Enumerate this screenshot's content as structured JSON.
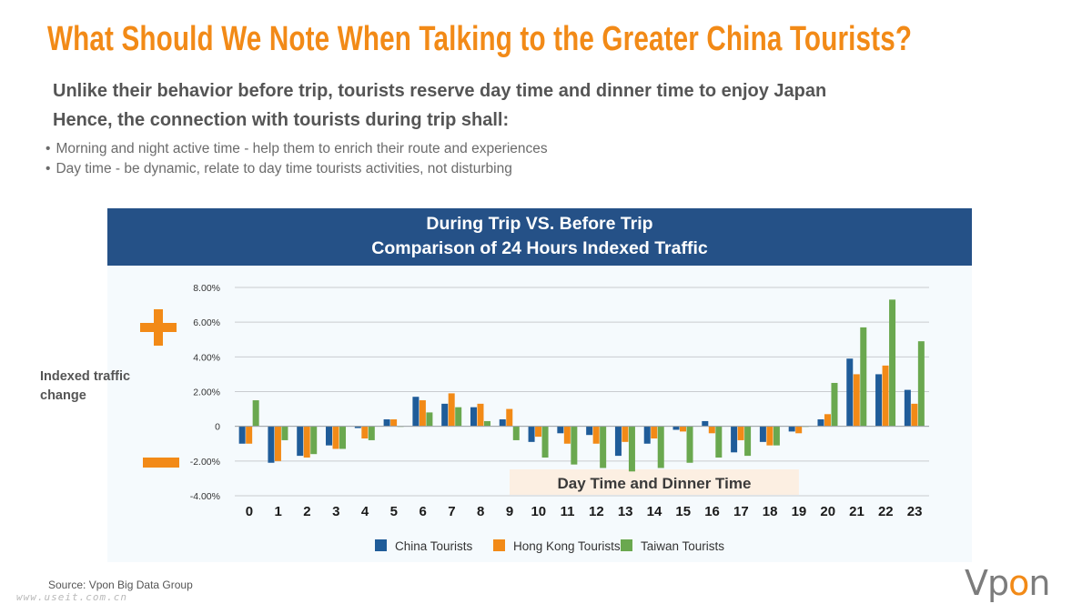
{
  "header": {
    "title": "What Should We Note When Talking to the Greater China Tourists?",
    "subtitle1": "Unlike their behavior before trip, tourists reserve day time and dinner time to enjoy Japan",
    "subtitle2": "Hence, the connection with tourists during trip shall:",
    "bullets": [
      "Morning and night active time - help them to enrich their route and experiences",
      "Day time - be dynamic, relate to day time tourists activities, not disturbing"
    ]
  },
  "side": {
    "plus_icon": "plus-sign",
    "minus_icon": "minus-sign",
    "y_label": "Indexed traffic change"
  },
  "colors": {
    "accent": "#f28a17",
    "header_bg": "#255187",
    "china": "#1f5c99",
    "hong_kong": "#f28a17",
    "taiwan": "#6aa84f"
  },
  "footer": {
    "source": "Source: Vpon Big Data Group",
    "watermark": "www.useit.com.cn",
    "logo_prefix": "Vp",
    "logo_o": "o",
    "logo_suffix": "n"
  },
  "chart_data": {
    "type": "bar",
    "title": "During Trip VS. Before Trip",
    "subtitle": "Comparison of 24 Hours Indexed Traffic",
    "ylabel": "Indexed traffic change",
    "xlabel": "",
    "ylim": [
      -4,
      8
    ],
    "yticks": [
      8,
      6,
      4,
      2,
      0,
      -2,
      -4
    ],
    "ytick_labels": [
      "8.00%",
      "6.00%",
      "4.00%",
      "2.00%",
      "0",
      "-2.00%",
      "-4.00%"
    ],
    "grid": true,
    "legend_position": "bottom",
    "categories": [
      "0",
      "1",
      "2",
      "3",
      "4",
      "5",
      "6",
      "7",
      "8",
      "9",
      "10",
      "11",
      "12",
      "13",
      "14",
      "15",
      "16",
      "17",
      "18",
      "19",
      "20",
      "21",
      "22",
      "23"
    ],
    "series": [
      {
        "name": "China Tourists",
        "values": [
          -1.0,
          -2.1,
          -1.7,
          -1.1,
          -0.1,
          0.4,
          1.7,
          1.3,
          1.1,
          0.4,
          -0.9,
          -0.4,
          -0.5,
          -1.7,
          -1.0,
          -0.2,
          0.3,
          -1.5,
          -0.9,
          -0.3,
          0.4,
          3.9,
          3.0,
          2.1
        ]
      },
      {
        "name": "Hong Kong Tourists",
        "values": [
          -1.0,
          -2.0,
          -1.8,
          -1.3,
          -0.7,
          0.4,
          1.5,
          1.9,
          1.3,
          1.0,
          -0.6,
          -1.0,
          -1.0,
          -0.9,
          -0.7,
          -0.3,
          -0.4,
          -0.8,
          -1.1,
          -0.4,
          0.7,
          3.0,
          3.5,
          1.3
        ]
      },
      {
        "name": "Taiwan Tourists",
        "values": [
          1.5,
          -0.8,
          -1.6,
          -1.3,
          -0.8,
          0.0,
          0.8,
          1.1,
          0.3,
          -0.8,
          -1.8,
          -2.2,
          -2.4,
          -2.6,
          -2.4,
          -2.1,
          -1.8,
          -1.7,
          -1.1,
          0.0,
          2.5,
          5.7,
          7.3,
          4.9
        ]
      }
    ],
    "annotation": "Day Time and Dinner Time",
    "annotation_range": [
      "10",
      "19"
    ]
  }
}
